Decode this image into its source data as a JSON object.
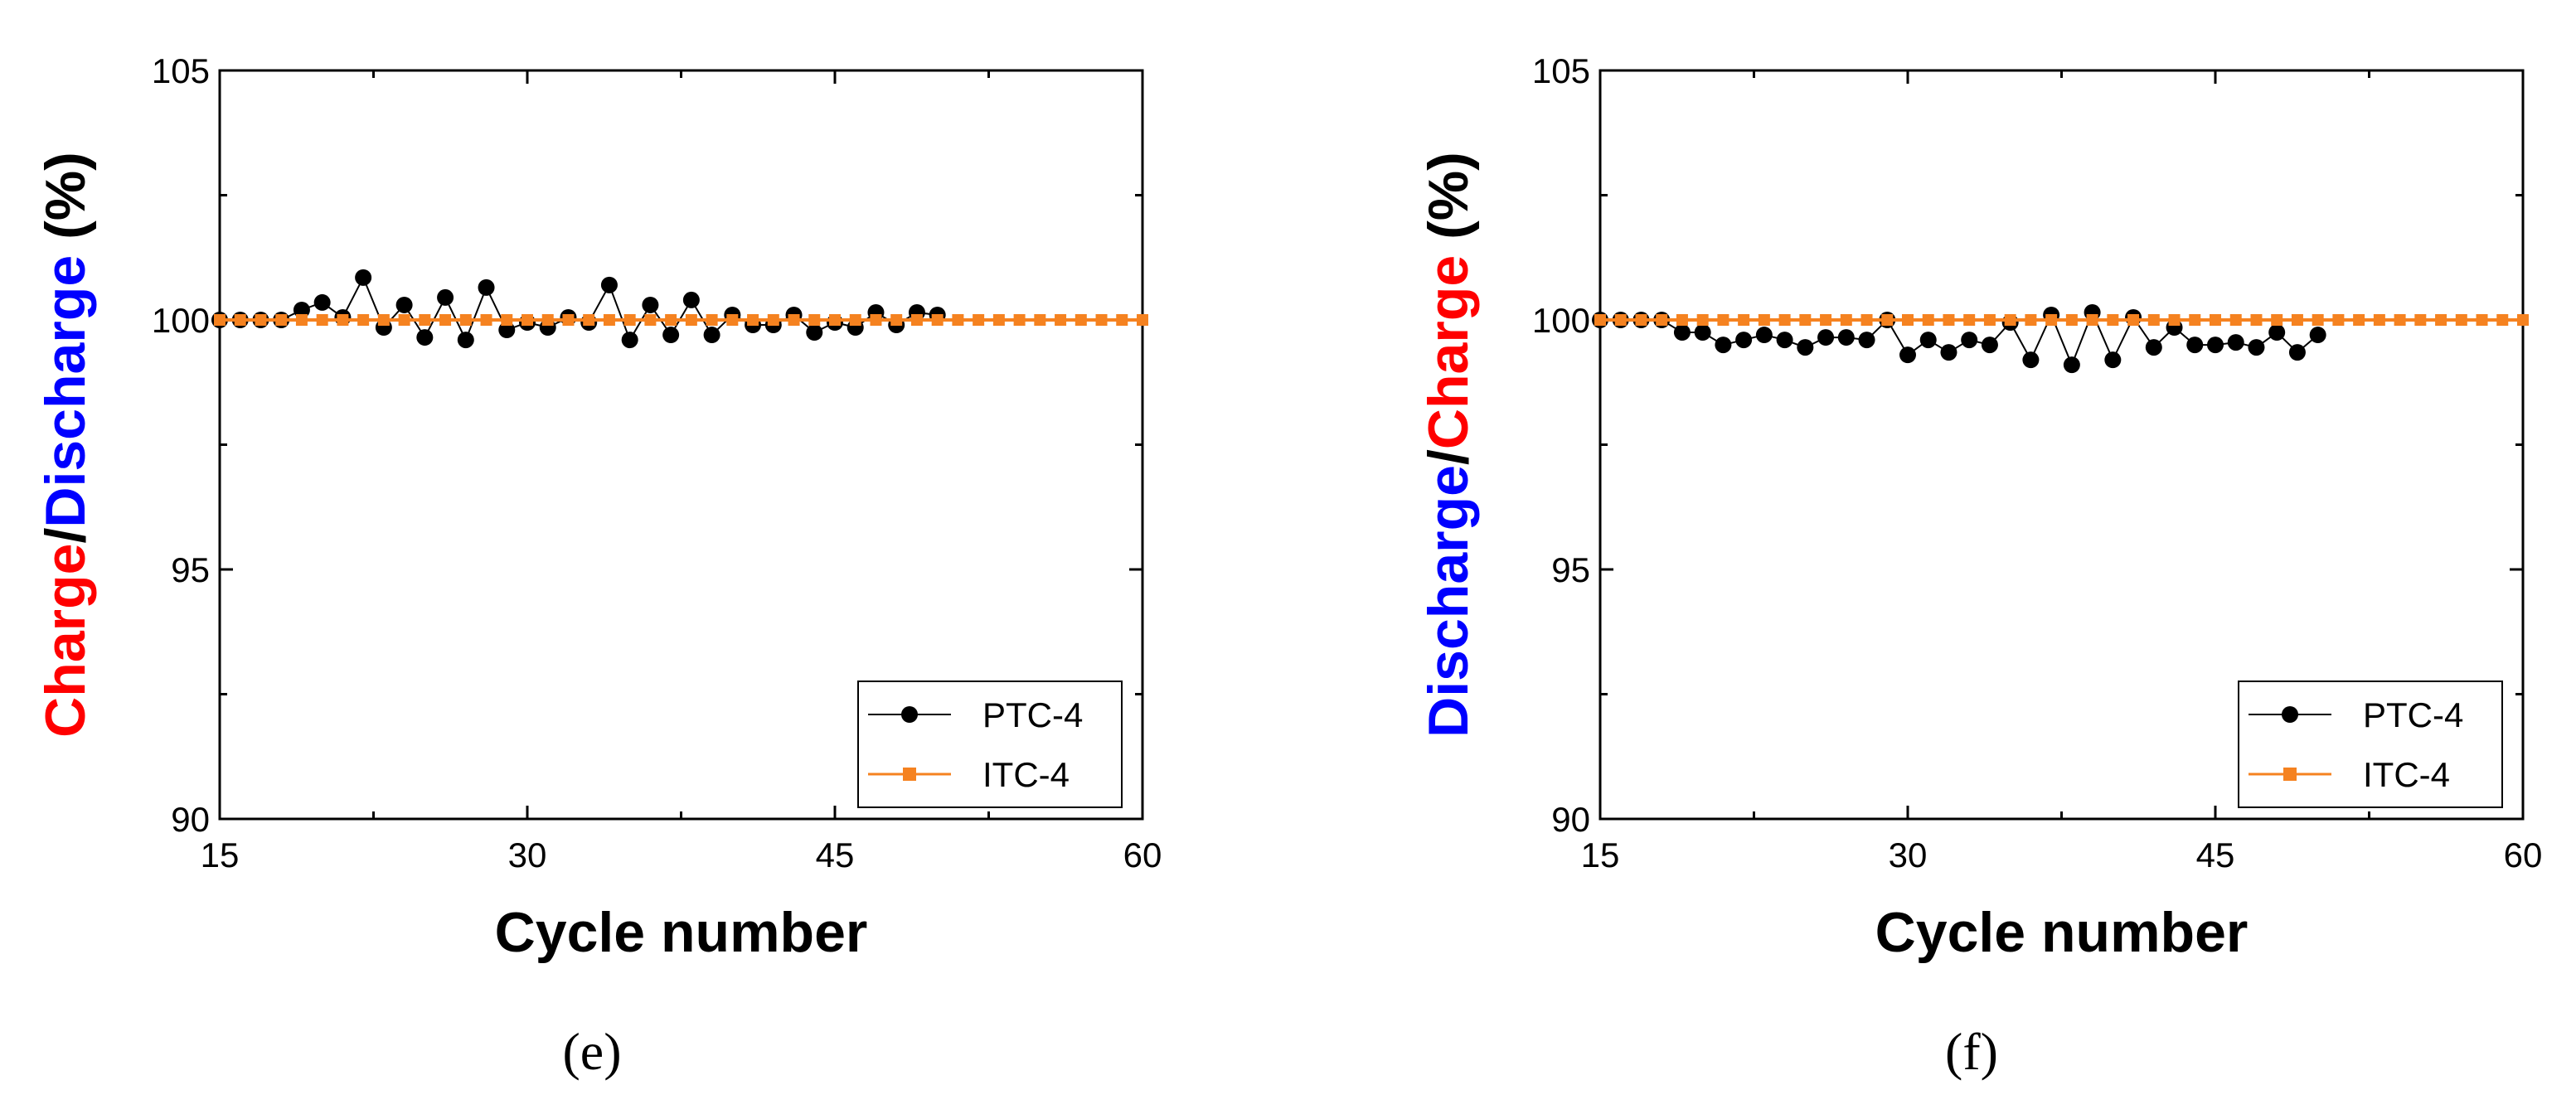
{
  "colors": {
    "ptc": "#000000",
    "itc": "#f58220",
    "charge_word": "#ff0000",
    "discharge_word": "#0000ff",
    "axis": "#000000"
  },
  "chart_data": [
    {
      "type": "line",
      "panel_label": "(e)",
      "xlabel": "Cycle number",
      "ylabel_parts": [
        {
          "text": "Charge",
          "color_key": "charge_word"
        },
        {
          "text": "/",
          "color_key": "axis"
        },
        {
          "text": "Discharge",
          "color_key": "discharge_word"
        },
        {
          "text": " (%)",
          "color_key": "axis"
        }
      ],
      "xlim": [
        15,
        60
      ],
      "ylim": [
        90,
        105
      ],
      "xticks": [
        15,
        30,
        45,
        60
      ],
      "yticks": [
        90,
        95,
        100,
        105
      ],
      "legend_position": "bottom-right",
      "series": [
        {
          "name": "PTC-4",
          "marker": "circle",
          "color_key": "ptc",
          "x": [
            15,
            16,
            17,
            18,
            19,
            20,
            21,
            22,
            23,
            24,
            25,
            26,
            27,
            28,
            29,
            30,
            31,
            32,
            33,
            34,
            35,
            36,
            37,
            38,
            39,
            40,
            41,
            42,
            43,
            44,
            45,
            46,
            47,
            48,
            49,
            50
          ],
          "y": [
            100.0,
            100.0,
            100.0,
            100.0,
            100.2,
            100.35,
            100.05,
            100.85,
            99.85,
            100.3,
            99.65,
            100.45,
            99.6,
            100.65,
            99.8,
            99.95,
            99.85,
            100.05,
            99.95,
            100.7,
            99.6,
            100.3,
            99.7,
            100.4,
            99.7,
            100.1,
            99.9,
            99.9,
            100.1,
            99.75,
            99.95,
            99.85,
            100.15,
            99.9,
            100.15,
            100.1
          ]
        },
        {
          "name": "ITC-4",
          "marker": "square",
          "color_key": "itc",
          "x": [
            15,
            16,
            17,
            18,
            19,
            20,
            21,
            22,
            23,
            24,
            25,
            26,
            27,
            28,
            29,
            30,
            31,
            32,
            33,
            34,
            35,
            36,
            37,
            38,
            39,
            40,
            41,
            42,
            43,
            44,
            45,
            46,
            47,
            48,
            49,
            50,
            51,
            52,
            53,
            54,
            55,
            56,
            57,
            58,
            59,
            60
          ],
          "y": [
            100,
            100,
            100,
            100,
            100,
            100,
            100,
            100,
            100,
            100,
            100,
            100,
            100,
            100,
            100,
            100,
            100,
            100,
            100,
            100,
            100,
            100,
            100,
            100,
            100,
            100,
            100,
            100,
            100,
            100,
            100,
            100,
            100,
            100,
            100,
            100,
            100,
            100,
            100,
            100,
            100,
            100,
            100,
            100,
            100,
            100
          ]
        }
      ]
    },
    {
      "type": "line",
      "panel_label": "(f)",
      "xlabel": "Cycle number",
      "ylabel_parts": [
        {
          "text": "Discharge",
          "color_key": "discharge_word"
        },
        {
          "text": "/",
          "color_key": "axis"
        },
        {
          "text": "Charge",
          "color_key": "charge_word"
        },
        {
          "text": " (%)",
          "color_key": "axis"
        }
      ],
      "xlim": [
        15,
        60
      ],
      "ylim": [
        90,
        105
      ],
      "xticks": [
        15,
        30,
        45,
        60
      ],
      "yticks": [
        90,
        95,
        100,
        105
      ],
      "legend_position": "bottom-right",
      "series": [
        {
          "name": "PTC-4",
          "marker": "circle",
          "color_key": "ptc",
          "x": [
            15,
            16,
            17,
            18,
            19,
            20,
            21,
            22,
            23,
            24,
            25,
            26,
            27,
            28,
            29,
            30,
            31,
            32,
            33,
            34,
            35,
            36,
            37,
            38,
            39,
            40,
            41,
            42,
            43,
            44,
            45,
            46,
            47,
            48,
            49,
            50
          ],
          "y": [
            100.0,
            100.0,
            100.0,
            100.0,
            99.75,
            99.75,
            99.5,
            99.6,
            99.7,
            99.6,
            99.45,
            99.65,
            99.65,
            99.6,
            100.0,
            99.3,
            99.6,
            99.35,
            99.6,
            99.5,
            99.95,
            99.2,
            100.1,
            99.1,
            100.15,
            99.2,
            100.05,
            99.45,
            99.85,
            99.5,
            99.5,
            99.55,
            99.45,
            99.75,
            99.35,
            99.7
          ]
        },
        {
          "name": "ITC-4",
          "marker": "square",
          "color_key": "itc",
          "x": [
            15,
            16,
            17,
            18,
            19,
            20,
            21,
            22,
            23,
            24,
            25,
            26,
            27,
            28,
            29,
            30,
            31,
            32,
            33,
            34,
            35,
            36,
            37,
            38,
            39,
            40,
            41,
            42,
            43,
            44,
            45,
            46,
            47,
            48,
            49,
            50,
            51,
            52,
            53,
            54,
            55,
            56,
            57,
            58,
            59,
            60
          ],
          "y": [
            100,
            100,
            100,
            100,
            100,
            100,
            100,
            100,
            100,
            100,
            100,
            100,
            100,
            100,
            100,
            100,
            100,
            100,
            100,
            100,
            100,
            100,
            100,
            100,
            100,
            100,
            100,
            100,
            100,
            100,
            100,
            100,
            100,
            100,
            100,
            100,
            100,
            100,
            100,
            100,
            100,
            100,
            100,
            100,
            100,
            100
          ]
        }
      ]
    }
  ]
}
